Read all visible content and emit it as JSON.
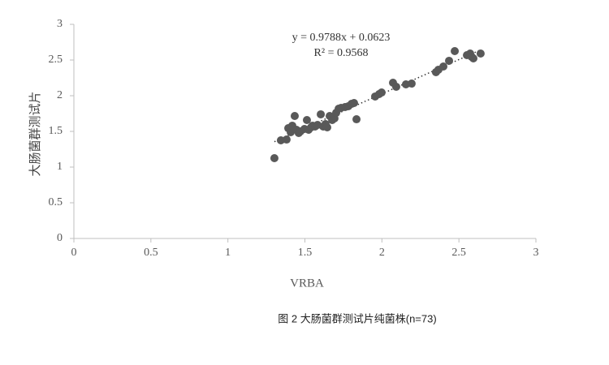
{
  "chart_data": {
    "type": "scatter",
    "x_label": "VRBA",
    "y_label": "大肠菌群测试片",
    "caption": "图 2 大肠菌群测试片纯菌株(n=73)",
    "annotations": [
      "y = 0.9788x + 0.0623",
      "R² = 0.9568"
    ],
    "trendline": true,
    "color": "#595959",
    "xlim": [
      0,
      3
    ],
    "ylim": [
      0,
      3
    ],
    "xticks": [
      0,
      0.5,
      1,
      1.5,
      2,
      2.5,
      3
    ],
    "yticks": [
      0,
      0.5,
      1,
      1.5,
      2,
      2.5,
      3
    ],
    "x": [
      1.302,
      1.344,
      1.381,
      1.392,
      1.408,
      1.418,
      1.434,
      1.445,
      1.46,
      1.471,
      1.497,
      1.513,
      1.524,
      1.54,
      1.55,
      1.566,
      1.582,
      1.603,
      1.619,
      1.634,
      1.645,
      1.661,
      1.677,
      1.692,
      1.703,
      1.719,
      1.735,
      1.761,
      1.782,
      1.803,
      1.819,
      1.835,
      1.956,
      1.982,
      1.998,
      2.072,
      2.093,
      2.156,
      2.193,
      2.351,
      2.367,
      2.399,
      2.436,
      2.473,
      2.552,
      2.573,
      2.583,
      2.594,
      2.641
    ],
    "values": [
      1.125,
      1.375,
      1.386,
      1.545,
      1.489,
      1.58,
      1.716,
      1.523,
      1.477,
      1.5,
      1.534,
      1.659,
      1.523,
      1.557,
      1.58,
      1.568,
      1.591,
      1.739,
      1.568,
      1.602,
      1.557,
      1.716,
      1.659,
      1.682,
      1.761,
      1.818,
      1.83,
      1.841,
      1.852,
      1.886,
      1.898,
      1.67,
      1.989,
      2.023,
      2.045,
      2.182,
      2.125,
      2.159,
      2.17,
      2.33,
      2.364,
      2.409,
      2.489,
      2.625,
      2.568,
      2.591,
      2.545,
      2.523,
      2.591
    ]
  }
}
